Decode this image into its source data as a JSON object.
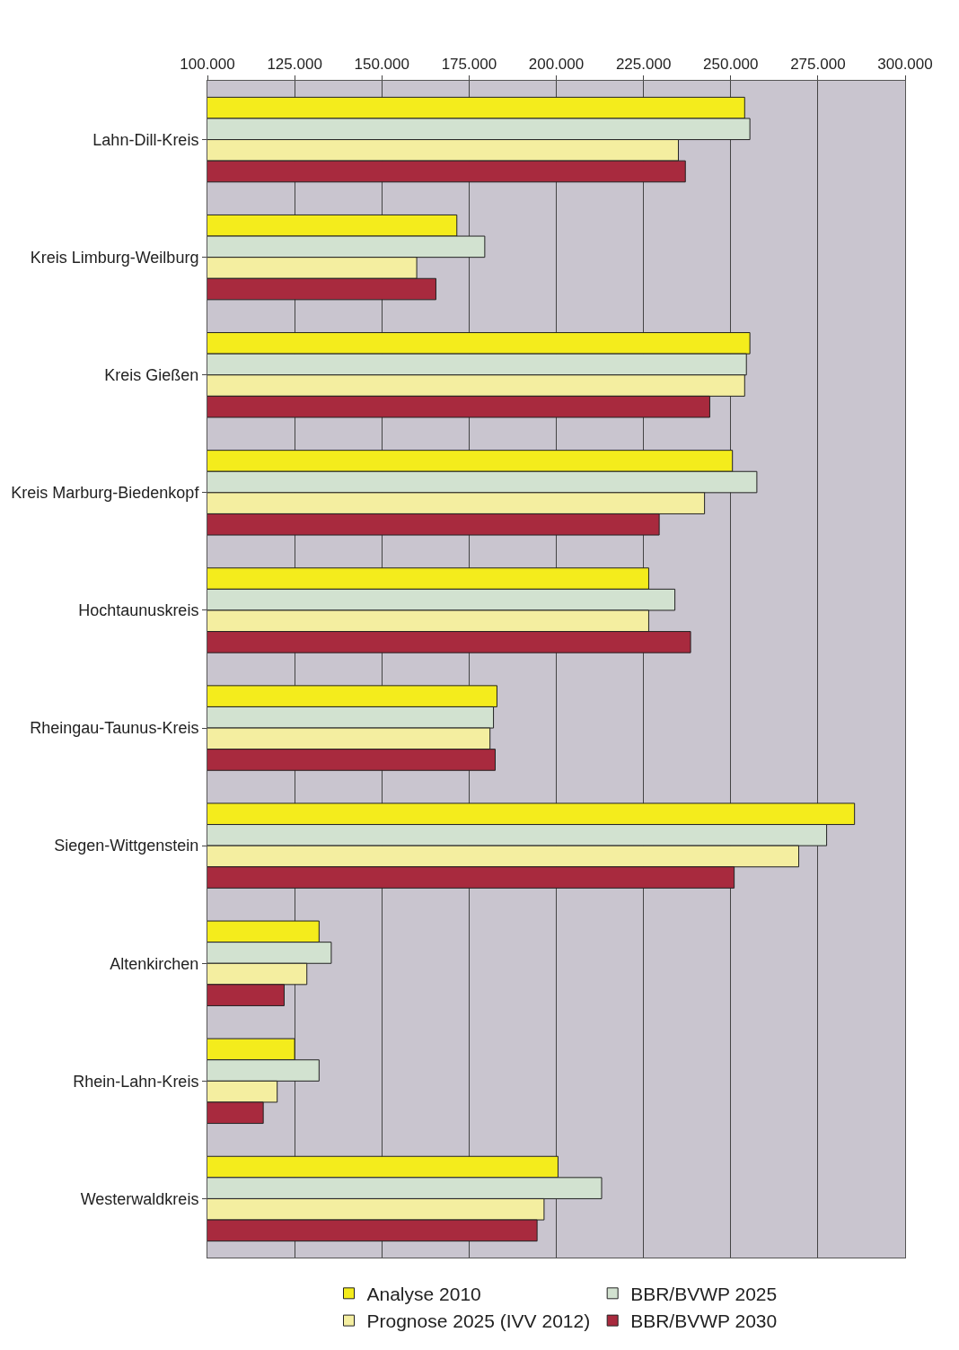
{
  "chart_data": {
    "type": "bar",
    "orientation": "horizontal",
    "categories": [
      "Lahn-Dill-Kreis",
      "Kreis Limburg-Weilburg",
      "Kreis Gießen",
      "Kreis Marburg-Biedenkopf",
      "Hochtaunuskreis",
      "Rheingau-Taunus-Kreis",
      "Siegen-Wittgenstein",
      "Altenkirchen",
      "Rhein-Lahn-Kreis",
      "Westerwaldkreis"
    ],
    "series": [
      {
        "name": "Analyse 2010",
        "color": "#f4ec1c",
        "values": [
          254000,
          171500,
          255500,
          250500,
          226500,
          183000,
          285500,
          132000,
          125000,
          200500
        ]
      },
      {
        "name": "BBR/BVWP 2025",
        "color": "#d2e2d0",
        "values": [
          255500,
          179500,
          254500,
          257500,
          234000,
          182000,
          277500,
          135500,
          132000,
          213000
        ]
      },
      {
        "name": "Prognose 2025 (IVV 2012)",
        "color": "#f4eea0",
        "values": [
          235000,
          160000,
          254000,
          242500,
          226500,
          181000,
          269500,
          128500,
          120000,
          196500
        ]
      },
      {
        "name": "BBR/BVWP 2030",
        "color": "#a82a3e",
        "values": [
          237000,
          165500,
          244000,
          229500,
          238500,
          182500,
          251000,
          122000,
          116000,
          194500
        ]
      }
    ],
    "xlim": [
      100000,
      300000
    ],
    "xticks": [
      {
        "value": 100000,
        "label": "100.000"
      },
      {
        "value": 125000,
        "label": "125.000"
      },
      {
        "value": 150000,
        "label": "150.000"
      },
      {
        "value": 175000,
        "label": "175.000"
      },
      {
        "value": 200000,
        "label": "200.000"
      },
      {
        "value": 225000,
        "label": "225.000"
      },
      {
        "value": 250000,
        "label": "250.000"
      },
      {
        "value": 275000,
        "label": "275.000"
      },
      {
        "value": 300000,
        "label": "300.000"
      }
    ],
    "grid": "x",
    "legend": "bottom"
  }
}
